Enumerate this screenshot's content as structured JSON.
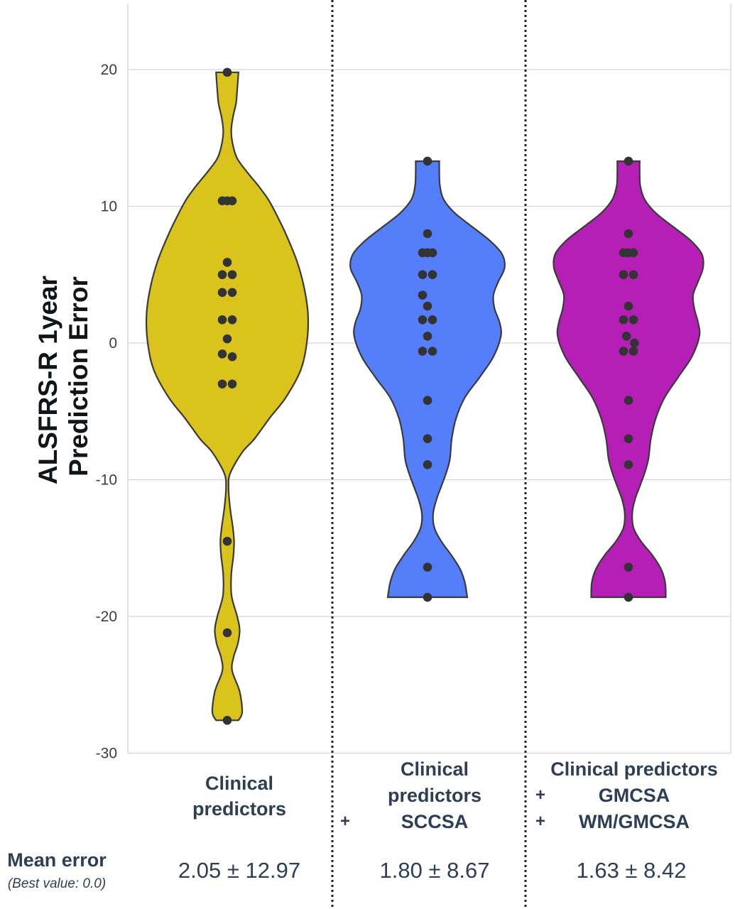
{
  "chart_data": {
    "type": "violin",
    "ylabel": [
      "ALSFRS-R 1year",
      "Prediction Error"
    ],
    "ylim": [
      -30,
      25
    ],
    "yticks": [
      20,
      10,
      0,
      -10,
      -20,
      -30
    ],
    "ytick_labels": [
      "20",
      "10",
      "0",
      "-10",
      "-20",
      "-30"
    ],
    "grid": true,
    "series": [
      {
        "category_lines": [
          {
            "prefix": "",
            "text": "Clinical"
          },
          {
            "prefix": "",
            "text": "predictors"
          }
        ],
        "color": "#d9c31c",
        "mean_error": "2.05 ± 12.97",
        "range": [
          -27.6,
          19.8
        ],
        "density": [
          [
            -27.6,
            0.9
          ],
          [
            -27,
            1.2
          ],
          [
            -25.5,
            1.0
          ],
          [
            -24,
            0.4
          ],
          [
            -23,
            0.5
          ],
          [
            -22,
            0.85
          ],
          [
            -21,
            1.0
          ],
          [
            -20,
            0.8
          ],
          [
            -18.5,
            0.35
          ],
          [
            -17,
            0.32
          ],
          [
            -15.5,
            0.5
          ],
          [
            -14.5,
            0.55
          ],
          [
            -13.5,
            0.45
          ],
          [
            -12,
            0.22
          ],
          [
            -10.5,
            0.1
          ],
          [
            -9.5,
            0.25
          ],
          [
            -8,
            1.2
          ],
          [
            -7,
            2.2
          ],
          [
            -5.5,
            3.4
          ],
          [
            -4,
            4.7
          ],
          [
            -2,
            5.9
          ],
          [
            0,
            6.4
          ],
          [
            2,
            6.5
          ],
          [
            4,
            6.2
          ],
          [
            6,
            5.6
          ],
          [
            8,
            4.7
          ],
          [
            9.5,
            3.9
          ],
          [
            10.5,
            3.3
          ],
          [
            11.5,
            2.5
          ],
          [
            12.5,
            1.6
          ],
          [
            13.5,
            0.8
          ],
          [
            14.5,
            0.45
          ],
          [
            15.5,
            0.32
          ],
          [
            16.5,
            0.45
          ],
          [
            17.5,
            0.7
          ],
          [
            18.5,
            0.8
          ],
          [
            19.8,
            0.9
          ]
        ],
        "points": [
          [
            19.8,
            0
          ],
          [
            10.4,
            -0.5
          ],
          [
            10.4,
            0
          ],
          [
            10.4,
            0.5
          ],
          [
            5.9,
            0
          ],
          [
            5.0,
            -0.5
          ],
          [
            5.0,
            0.5
          ],
          [
            3.7,
            -0.5
          ],
          [
            3.7,
            0.5
          ],
          [
            1.7,
            -0.5
          ],
          [
            1.7,
            0.5
          ],
          [
            0.3,
            0
          ],
          [
            -0.8,
            -0.5
          ],
          [
            -1.0,
            0.5
          ],
          [
            -3.0,
            -0.5
          ],
          [
            -3.0,
            0.5
          ],
          [
            -14.5,
            0
          ],
          [
            -21.2,
            0
          ],
          [
            -27.6,
            0
          ]
        ]
      },
      {
        "category_lines": [
          {
            "prefix": "",
            "text": "Clinical"
          },
          {
            "prefix": "",
            "text": "predictors"
          },
          {
            "prefix": "+",
            "text": "SCCSA"
          }
        ],
        "color": "#547efa",
        "mean_error": "1.80 ± 8.67",
        "range": [
          -18.6,
          13.3
        ],
        "density": [
          [
            -18.6,
            3.2
          ],
          [
            -17.5,
            3.0
          ],
          [
            -16.5,
            2.6
          ],
          [
            -15.5,
            1.9
          ],
          [
            -14.5,
            1.1
          ],
          [
            -13.5,
            0.55
          ],
          [
            -12.5,
            0.45
          ],
          [
            -11.5,
            0.7
          ],
          [
            -10.5,
            1.1
          ],
          [
            -9.5,
            1.5
          ],
          [
            -8.5,
            1.8
          ],
          [
            -7,
            1.95
          ],
          [
            -5.5,
            2.3
          ],
          [
            -4,
            3.0
          ],
          [
            -2.5,
            4.2
          ],
          [
            -1,
            5.3
          ],
          [
            0.5,
            5.9
          ],
          [
            1.5,
            5.8
          ],
          [
            2.5,
            5.4
          ],
          [
            3.5,
            5.3
          ],
          [
            4.5,
            5.7
          ],
          [
            5.5,
            6.2
          ],
          [
            6.5,
            6.0
          ],
          [
            7.5,
            5.0
          ],
          [
            8.5,
            3.6
          ],
          [
            9.5,
            2.2
          ],
          [
            10.5,
            1.3
          ],
          [
            11.5,
            1.0
          ],
          [
            12.5,
            0.95
          ],
          [
            13.3,
            0.95
          ]
        ],
        "points": [
          [
            13.3,
            0
          ],
          [
            8.0,
            0
          ],
          [
            6.6,
            -0.5
          ],
          [
            6.6,
            0
          ],
          [
            6.6,
            0.5
          ],
          [
            5.0,
            -0.5
          ],
          [
            5.0,
            0.5
          ],
          [
            3.5,
            -0.5
          ],
          [
            2.7,
            0
          ],
          [
            1.7,
            -0.5
          ],
          [
            1.7,
            0.5
          ],
          [
            0.5,
            0
          ],
          [
            -0.6,
            -0.5
          ],
          [
            -0.6,
            0.5
          ],
          [
            -4.2,
            0
          ],
          [
            -7.0,
            0
          ],
          [
            -8.9,
            0
          ],
          [
            -16.4,
            0
          ],
          [
            -18.6,
            0
          ]
        ]
      },
      {
        "category_lines": [
          {
            "prefix": "",
            "text": "Clinical predictors"
          },
          {
            "prefix": "+",
            "text": "GMCSA"
          },
          {
            "prefix": "+",
            "text": "WM/GMCSA"
          }
        ],
        "color": "#b61fb5",
        "mean_error": "1.63 ± 8.42",
        "range": [
          -18.6,
          13.3
        ],
        "density": [
          [
            -18.6,
            3.0
          ],
          [
            -17.5,
            2.95
          ],
          [
            -16.5,
            2.6
          ],
          [
            -15.5,
            1.9
          ],
          [
            -14.5,
            1.0
          ],
          [
            -13.5,
            0.4
          ],
          [
            -12.5,
            0.3
          ],
          [
            -11.5,
            0.5
          ],
          [
            -10.5,
            0.9
          ],
          [
            -9.5,
            1.3
          ],
          [
            -8.5,
            1.6
          ],
          [
            -7,
            1.8
          ],
          [
            -5.5,
            2.2
          ],
          [
            -4,
            2.9
          ],
          [
            -2.5,
            4.0
          ],
          [
            -1,
            5.1
          ],
          [
            0.5,
            5.7
          ],
          [
            1.5,
            5.6
          ],
          [
            2.5,
            5.3
          ],
          [
            3.5,
            5.2
          ],
          [
            4.5,
            5.6
          ],
          [
            5.5,
            6.0
          ],
          [
            6.5,
            5.9
          ],
          [
            7.5,
            5.0
          ],
          [
            8.5,
            3.6
          ],
          [
            9.5,
            2.2
          ],
          [
            10.5,
            1.3
          ],
          [
            11.5,
            0.95
          ],
          [
            12.5,
            0.9
          ],
          [
            13.3,
            0.9
          ]
        ],
        "points": [
          [
            13.3,
            0
          ],
          [
            8.0,
            0
          ],
          [
            6.6,
            -0.5
          ],
          [
            6.6,
            0
          ],
          [
            6.6,
            0.5
          ],
          [
            5.0,
            -0.5
          ],
          [
            5.0,
            0.5
          ],
          [
            2.7,
            0
          ],
          [
            1.7,
            -0.5
          ],
          [
            1.7,
            0.5
          ],
          [
            0.5,
            -0.2
          ],
          [
            0.0,
            0.6
          ],
          [
            -0.6,
            -0.5
          ],
          [
            -0.6,
            0.5
          ],
          [
            -4.2,
            0
          ],
          [
            -7.0,
            0
          ],
          [
            -8.9,
            0
          ],
          [
            -16.4,
            0
          ],
          [
            -18.6,
            0
          ]
        ]
      }
    ],
    "mean_error_title": "Mean error",
    "mean_error_note": "(Best value: 0.0)"
  }
}
